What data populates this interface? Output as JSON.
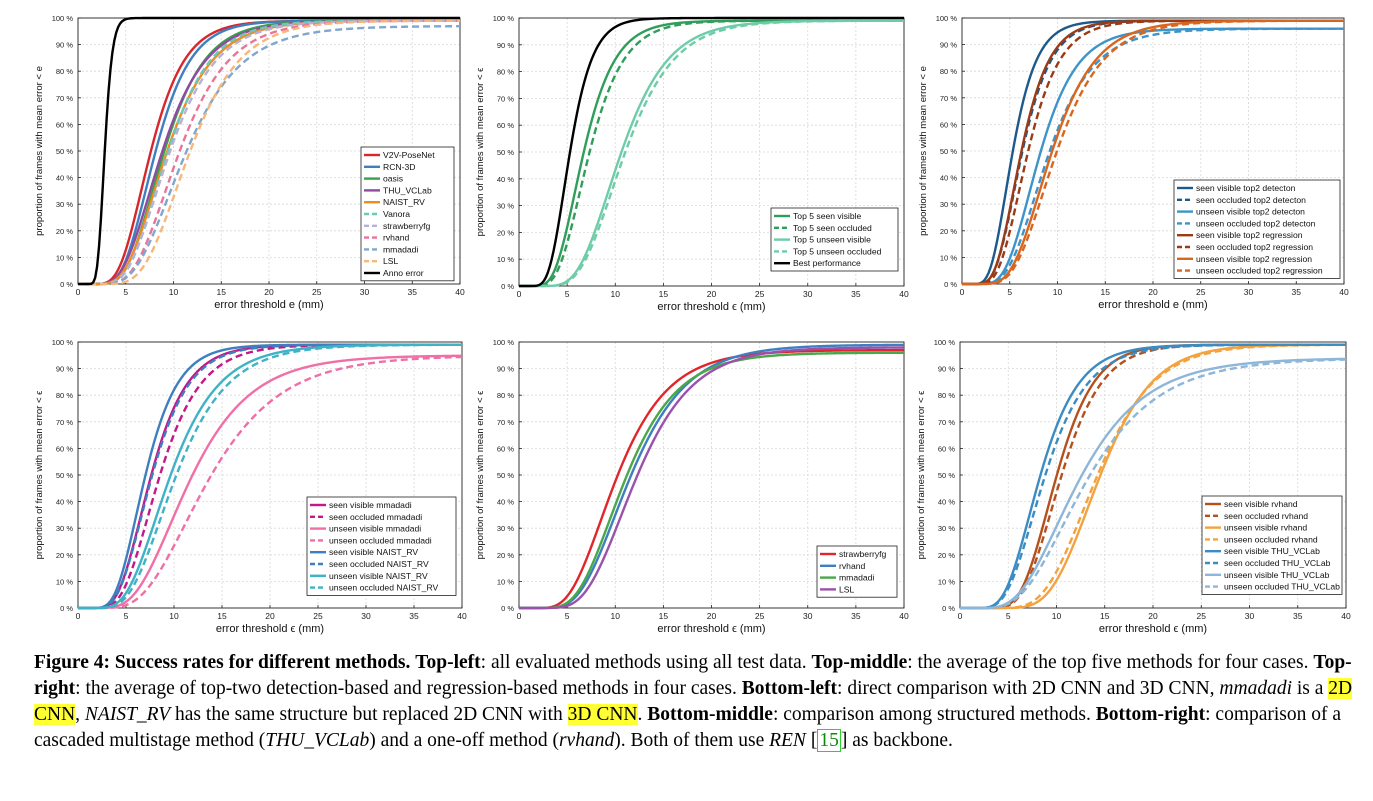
{
  "colors": {
    "red": "#d7262c",
    "blue": "#3f7fbf",
    "green": "#3aa04c",
    "purple": "#8e4ca0",
    "orange": "#f08c1e",
    "teal": "#6fc7b7",
    "lav": "#b7b1d8",
    "pink": "#e8749a",
    "steel": "#7fa6cc",
    "peach": "#f6b779",
    "black": "#000000",
    "dgreen": "#2f9e5a",
    "mint": "#6ecca9",
    "navy": "#1d5a8a",
    "lblue": "#3e94c8",
    "brown": "#9b3a14",
    "dorange": "#d9661f",
    "magenta": "#c2188a",
    "hpink": "#ef6fa6",
    "cyan": "#3fb2c6",
    "strawred": "#e0262a",
    "rvblue": "#3f7fbf",
    "mmgreen": "#4aa84a",
    "lslpurple": "#9a52ad",
    "rvbrown": "#b5501c",
    "rvorange": "#f3a23f",
    "thublue": "#3a8cc3",
    "thulight": "#8db6d9",
    "grid": "#d8d8d8"
  },
  "chart_data": [
    {
      "id": "top-left",
      "type": "line",
      "xlabel": "error threshold e (mm)",
      "ylabel": "proportion of frames with mean error < e",
      "xlim": [
        0,
        40
      ],
      "ylim": [
        0,
        100
      ],
      "xticks": [
        0,
        5,
        10,
        15,
        20,
        25,
        30,
        35,
        40
      ],
      "yticks": [
        0,
        10,
        20,
        30,
        40,
        50,
        60,
        70,
        80,
        90,
        100
      ],
      "grid": true,
      "legend_position": "bottom-right",
      "series": [
        {
          "name": "V2V-PoseNet",
          "color": "red",
          "dash": "solid",
          "mu": 7.6,
          "sd": 3.4,
          "max": 99
        },
        {
          "name": "RCN-3D",
          "color": "blue",
          "dash": "solid",
          "mu": 8.1,
          "sd": 3.5,
          "max": 99
        },
        {
          "name": "oasis",
          "color": "green",
          "dash": "solid",
          "mu": 9.0,
          "sd": 4.1,
          "max": 99
        },
        {
          "name": "THU_VCLab",
          "color": "purple",
          "dash": "solid",
          "mu": 8.8,
          "sd": 4.4,
          "max": 99
        },
        {
          "name": "NAIST_RV",
          "color": "orange",
          "dash": "solid",
          "mu": 9.3,
          "sd": 4.6,
          "max": 99
        },
        {
          "name": "Vanora",
          "color": "teal",
          "dash": "dash",
          "mu": 9.4,
          "sd": 4.3,
          "max": 99
        },
        {
          "name": "strawberryfg",
          "color": "lav",
          "dash": "dash",
          "mu": 9.6,
          "sd": 4.7,
          "max": 99
        },
        {
          "name": "rvhand",
          "color": "pink",
          "dash": "dash",
          "mu": 10.6,
          "sd": 5.0,
          "max": 99
        },
        {
          "name": "mmadadi",
          "color": "steel",
          "dash": "dash",
          "mu": 11.2,
          "sd": 5.6,
          "max": 97
        },
        {
          "name": "LSL",
          "color": "peach",
          "dash": "dash",
          "mu": 11.7,
          "sd": 5.0,
          "max": 99
        },
        {
          "name": "Anno error",
          "color": "black",
          "dash": "solid",
          "mu": 2.8,
          "sd": 0.7,
          "max": 100
        }
      ]
    },
    {
      "id": "top-middle",
      "type": "line",
      "xlabel": "error threshold ϵ (mm)",
      "ylabel": "proportion of frames with mean error < ϵ",
      "xlim": [
        0,
        40
      ],
      "ylim": [
        0,
        100
      ],
      "xticks": [
        0,
        5,
        10,
        15,
        20,
        25,
        30,
        35,
        40
      ],
      "yticks": [
        0,
        10,
        20,
        30,
        40,
        50,
        60,
        70,
        80,
        90,
        100
      ],
      "grid": true,
      "legend_position": "bottom-right",
      "series": [
        {
          "name": "Top 5 seen visible",
          "color": "dgreen",
          "dash": "solid",
          "mu": 6.7,
          "sd": 3.1,
          "max": 99
        },
        {
          "name": "Top 5 seen occluded",
          "color": "dgreen",
          "dash": "dash",
          "mu": 7.3,
          "sd": 3.4,
          "max": 99
        },
        {
          "name": "Top 5 unseen visible",
          "color": "mint",
          "dash": "solid",
          "mu": 10.6,
          "sd": 4.6,
          "max": 99
        },
        {
          "name": "Top 5 unseen occluded",
          "color": "mint",
          "dash": "dash",
          "mu": 11.0,
          "sd": 4.8,
          "max": 99
        },
        {
          "name": "Best performance",
          "color": "black",
          "dash": "solid",
          "mu": 5.3,
          "sd": 2.2,
          "max": 100
        }
      ]
    },
    {
      "id": "top-right",
      "type": "line",
      "xlabel": "error threshold e (mm)",
      "ylabel": "proportion of frames with mean error < e",
      "xlim": [
        0,
        40
      ],
      "ylim": [
        0,
        100
      ],
      "xticks": [
        0,
        5,
        10,
        15,
        20,
        25,
        30,
        35,
        40
      ],
      "yticks": [
        0,
        10,
        20,
        30,
        40,
        50,
        60,
        70,
        80,
        90,
        100
      ],
      "grid": true,
      "legend_position": "bottom-right",
      "series": [
        {
          "name": "seen visible top2 detecton",
          "color": "navy",
          "dash": "solid",
          "mu": 5.3,
          "sd": 2.4,
          "max": 99
        },
        {
          "name": "seen occluded top2 detecton",
          "color": "navy",
          "dash": "dash",
          "mu": 6.3,
          "sd": 2.9,
          "max": 99
        },
        {
          "name": "unseen visible top2 detecton",
          "color": "lblue",
          "dash": "solid",
          "mu": 8.1,
          "sd": 3.7,
          "max": 96
        },
        {
          "name": "unseen occluded top2 detecton",
          "color": "lblue",
          "dash": "dash",
          "mu": 9.0,
          "sd": 4.5,
          "max": 96
        },
        {
          "name": "seen visible top2 regression",
          "color": "brown",
          "dash": "solid",
          "mu": 6.2,
          "sd": 2.8,
          "max": 99
        },
        {
          "name": "seen occluded top2 regression",
          "color": "brown",
          "dash": "dash",
          "mu": 6.9,
          "sd": 3.2,
          "max": 99
        },
        {
          "name": "unseen visible top2 regression",
          "color": "dorange",
          "dash": "solid",
          "mu": 9.4,
          "sd": 4.4,
          "max": 99
        },
        {
          "name": "unseen occluded top2 regression",
          "color": "dorange",
          "dash": "dash",
          "mu": 9.9,
          "sd": 4.7,
          "max": 99
        }
      ]
    },
    {
      "id": "bottom-left",
      "type": "line",
      "xlabel": "error threshold ϵ (mm)",
      "ylabel": "proportion of frames with mean error < ϵ",
      "xlim": [
        0,
        40
      ],
      "ylim": [
        0,
        100
      ],
      "xticks": [
        0,
        5,
        10,
        15,
        20,
        25,
        30,
        35,
        40
      ],
      "yticks": [
        0,
        10,
        20,
        30,
        40,
        50,
        60,
        70,
        80,
        90,
        100
      ],
      "grid": true,
      "legend_position": "bottom-right",
      "series": [
        {
          "name": "seen visible mmadadi",
          "color": "magenta",
          "dash": "solid",
          "mu": 7.6,
          "sd": 3.6,
          "max": 99
        },
        {
          "name": "seen occluded mmadadi",
          "color": "magenta",
          "dash": "dash",
          "mu": 8.5,
          "sd": 4.1,
          "max": 99
        },
        {
          "name": "unseen visible mmadadi",
          "color": "hpink",
          "dash": "solid",
          "mu": 11.6,
          "sd": 6.2,
          "max": 95
        },
        {
          "name": "unseen occluded mmadadi",
          "color": "hpink",
          "dash": "dash",
          "mu": 13.5,
          "sd": 7.4,
          "max": 95
        },
        {
          "name": "seen visible NAIST_RV",
          "color": "blue",
          "dash": "solid",
          "mu": 7.0,
          "sd": 3.2,
          "max": 99
        },
        {
          "name": "seen occluded NAIST_RV",
          "color": "blue",
          "dash": "dash",
          "mu": 7.7,
          "sd": 3.7,
          "max": 99
        },
        {
          "name": "unseen visible NAIST_RV",
          "color": "cyan",
          "dash": "solid",
          "mu": 9.6,
          "sd": 4.9,
          "max": 99
        },
        {
          "name": "unseen occluded NAIST_RV",
          "color": "cyan",
          "dash": "dash",
          "mu": 10.2,
          "sd": 5.2,
          "max": 99
        }
      ]
    },
    {
      "id": "bottom-middle",
      "type": "line",
      "xlabel": "error threshold ϵ (mm)",
      "ylabel": "proportion of frames with mean error < ϵ",
      "xlim": [
        0,
        40
      ],
      "ylim": [
        0,
        100
      ],
      "xticks": [
        0,
        5,
        10,
        15,
        20,
        25,
        30,
        35,
        40
      ],
      "yticks": [
        0,
        10,
        20,
        30,
        40,
        50,
        60,
        70,
        80,
        90,
        100
      ],
      "grid": true,
      "legend_position": "bottom-right",
      "series": [
        {
          "name": "strawberryfg",
          "color": "strawred",
          "dash": "solid",
          "mu": 10.1,
          "sd": 5.2,
          "max": 97
        },
        {
          "name": "rvhand",
          "color": "rvblue",
          "dash": "solid",
          "mu": 11.6,
          "sd": 5.6,
          "max": 99
        },
        {
          "name": "mmadadi",
          "color": "mmgreen",
          "dash": "solid",
          "mu": 11.0,
          "sd": 5.2,
          "max": 96
        },
        {
          "name": "LSL",
          "color": "lslpurple",
          "dash": "solid",
          "mu": 12.2,
          "sd": 5.5,
          "max": 98
        }
      ]
    },
    {
      "id": "bottom-right",
      "type": "line",
      "xlabel": "error threshold ϵ (mm)",
      "ylabel": "proportion of frames with mean error < ϵ",
      "xlim": [
        0,
        40
      ],
      "ylim": [
        0,
        100
      ],
      "xticks": [
        0,
        5,
        10,
        15,
        20,
        25,
        30,
        35,
        40
      ],
      "yticks": [
        0,
        10,
        20,
        30,
        40,
        50,
        60,
        70,
        80,
        90,
        100
      ],
      "grid": true,
      "legend_position": "bottom-right",
      "series": [
        {
          "name": "seen visible rvhand",
          "color": "rvbrown",
          "dash": "solid",
          "mu": 10.0,
          "sd": 3.6,
          "max": 99
        },
        {
          "name": "seen occluded rvhand",
          "color": "rvbrown",
          "dash": "dash",
          "mu": 10.5,
          "sd": 3.9,
          "max": 99
        },
        {
          "name": "unseen visible rvhand",
          "color": "rvorange",
          "dash": "solid",
          "mu": 14.5,
          "sd": 5.0,
          "max": 99
        },
        {
          "name": "unseen occluded rvhand",
          "color": "rvorange",
          "dash": "dash",
          "mu": 14.2,
          "sd": 5.4,
          "max": 99
        },
        {
          "name": "seen visible THU_VCLab",
          "color": "thublue",
          "dash": "solid",
          "mu": 8.3,
          "sd": 3.8,
          "max": 99
        },
        {
          "name": "seen occluded THU_VCLab",
          "color": "thublue",
          "dash": "dash",
          "mu": 8.8,
          "sd": 4.2,
          "max": 99
        },
        {
          "name": "unseen visible THU_VCLab",
          "color": "thulight",
          "dash": "solid",
          "mu": 12.2,
          "sd": 6.8,
          "max": 94
        },
        {
          "name": "unseen occluded THU_VCLab",
          "color": "thulight",
          "dash": "dash",
          "mu": 13.0,
          "sd": 7.4,
          "max": 94
        }
      ]
    }
  ],
  "caption": {
    "label": "Figure 4: Success rates for different methods.",
    "p1_b": "Top-left",
    "p1": ": all evaluated methods using all test data.",
    "p2_b": "Top-middle",
    "p2": ": the average of the top five methods for four cases.",
    "p3_b": "Top-right",
    "p3": ": the average of top-two detection-based and regression-based methods in four cases.",
    "p4_b": "Bottom-left",
    "p4": ": direct comparison with 2D CNN and 3D CNN,",
    "mmadadi": "mmadadi",
    "is_a": "is a",
    "hl1": "2D CNN",
    "comma": ",",
    "naist": "NAIST_RV",
    "same": "has the same structure but replaced 2D CNN with",
    "hl2": "3D CNN",
    "period": ".",
    "p5_b": "Bottom-middle",
    "p5": ": comparison among structured methods.",
    "p6_b": "Bottom-right",
    "p6": ": comparison of a cascaded multistage method (",
    "thu": "THU_VCLab",
    "p6b": ") and a one-off method (",
    "rvhand": "rvhand",
    "p6c": "). Both of them use",
    "ren": "REN",
    "ref": "15",
    "tail": "as backbone."
  }
}
